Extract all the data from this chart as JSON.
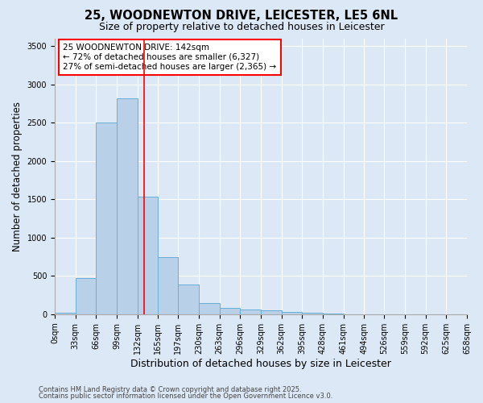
{
  "title": "25, WOODNEWTON DRIVE, LEICESTER, LE5 6NL",
  "subtitle": "Size of property relative to detached houses in Leicester",
  "xlabel": "Distribution of detached houses by size in Leicester",
  "ylabel": "Number of detached properties",
  "bar_color": "#b8d0e8",
  "bar_edge_color": "#6aaed6",
  "background_color": "#dce8f5",
  "plot_bg_color": "#dce8f5",
  "grid_color": "#ffffff",
  "red_line_x": 142,
  "annotation_title": "25 WOODNEWTON DRIVE: 142sqm",
  "annotation_line1": "← 72% of detached houses are smaller (6,327)",
  "annotation_line2": "27% of semi-detached houses are larger (2,365) →",
  "footnote1": "Contains HM Land Registry data © Crown copyright and database right 2025.",
  "footnote2": "Contains public sector information licensed under the Open Government Licence v3.0.",
  "bin_edges": [
    0,
    33,
    66,
    99,
    132,
    165,
    197,
    230,
    263,
    296,
    329,
    362,
    395,
    428,
    461,
    494,
    526,
    559,
    592,
    625,
    658
  ],
  "bar_heights": [
    20,
    470,
    2500,
    2820,
    1530,
    750,
    390,
    150,
    80,
    60,
    50,
    30,
    20,
    5,
    0,
    0,
    0,
    0,
    0,
    0
  ],
  "ylim": [
    0,
    3600
  ],
  "yticks": [
    0,
    500,
    1000,
    1500,
    2000,
    2500,
    3000,
    3500
  ],
  "title_fontsize": 10.5,
  "subtitle_fontsize": 9,
  "tick_fontsize": 7,
  "ylabel_fontsize": 8.5,
  "xlabel_fontsize": 9,
  "annotation_fontsize": 7.5,
  "footnote_fontsize": 6
}
